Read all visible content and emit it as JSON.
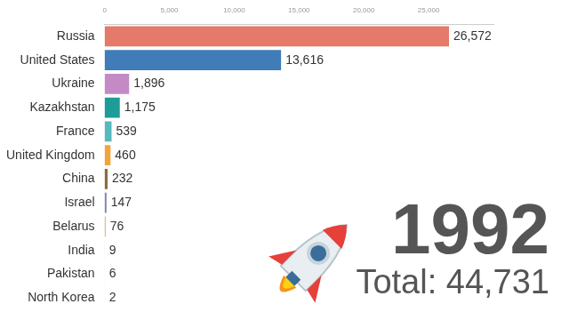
{
  "chart_data": {
    "type": "bar",
    "orientation": "horizontal",
    "categories": [
      "Russia",
      "United States",
      "Ukraine",
      "Kazakhstan",
      "France",
      "United Kingdom",
      "China",
      "Israel",
      "Belarus",
      "India",
      "Pakistan",
      "North Korea"
    ],
    "values": [
      26572,
      13616,
      1896,
      1175,
      539,
      460,
      232,
      147,
      76,
      9,
      6,
      2
    ],
    "value_labels": [
      "26,572",
      "13,616",
      "1,896",
      "1,175",
      "539",
      "460",
      "232",
      "147",
      "76",
      "9",
      "6",
      "2"
    ],
    "colors": [
      "#e5796a",
      "#3f7cb8",
      "#c48ac6",
      "#1f9c98",
      "#55b9bd",
      "#f2a43a",
      "#8d6b3d",
      "#7b80b3",
      "#c9a36d",
      "#e07b3c",
      "#6aaa5a",
      "#d9534f"
    ],
    "xlim": [
      0,
      30000
    ],
    "xticks": [
      0,
      {
        "value": 5000,
        "label": "5,000"
      },
      {
        "value": 10000,
        "label": "10,000"
      },
      {
        "value": 15000,
        "label": "15,000"
      },
      {
        "value": 20000,
        "label": "20,000"
      },
      {
        "value": 25000,
        "label": "25,000"
      }
    ],
    "grid": false,
    "data_labels": true,
    "annotations": [
      "1992",
      "Total: 44,731"
    ]
  }
}
